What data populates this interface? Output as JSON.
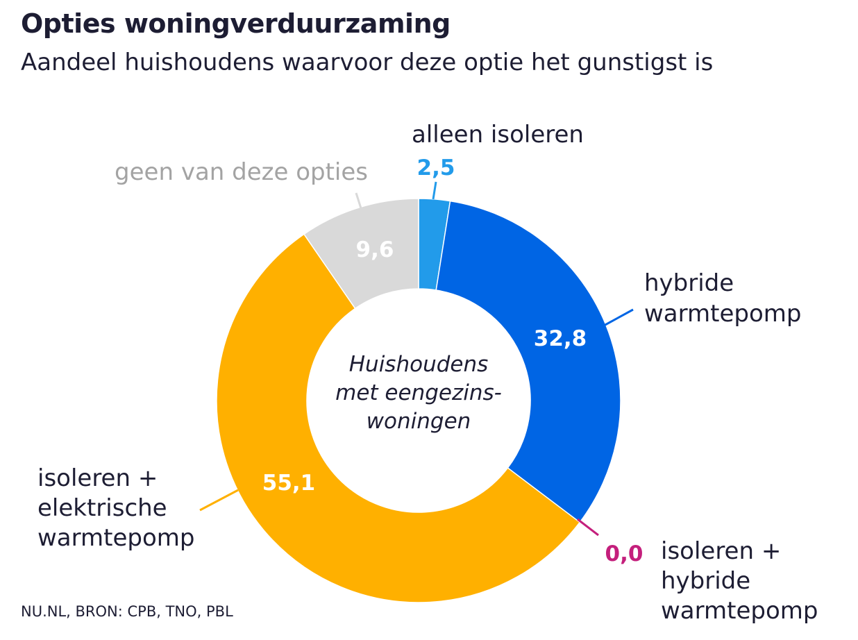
{
  "header": {
    "title": "Opties woningverduurzaming",
    "subtitle": "Aandeel huishoudens waarvoor deze optie het gunstigst is"
  },
  "footer": {
    "source": "NU.NL, BRON: CPB, TNO, PBL"
  },
  "chart_data": {
    "type": "pie",
    "variant": "donut",
    "title": "Opties woningverduurzaming",
    "subtitle": "Aandeel huishoudens waarvoor deze optie het gunstigst is",
    "center_label": [
      "Huishoudens",
      "met eengezins-",
      "woningen"
    ],
    "slices": [
      {
        "key": "alleen_isoleren",
        "label": [
          "alleen isoleren"
        ],
        "value": 2.5,
        "value_label": "2,5",
        "color": "#229bea",
        "value_color": "#229bea",
        "label_color": "#1d1d33"
      },
      {
        "key": "hybride_warmtepomp",
        "label": [
          "hybride",
          "warmtepomp"
        ],
        "value": 32.8,
        "value_label": "32,8",
        "color": "#0065e4",
        "value_color": "#ffffff",
        "label_color": "#1d1d33"
      },
      {
        "key": "isoleren_hybride",
        "label": [
          "isoleren +",
          "hybride",
          "warmtepomp"
        ],
        "value": 0.0,
        "value_label": "0,0",
        "color": "#c41f7c",
        "value_color": "#c41f7c",
        "label_color": "#1d1d33"
      },
      {
        "key": "isoleren_elektrisch",
        "label": [
          "isoleren +",
          "elektrische",
          "warmtepomp"
        ],
        "value": 55.1,
        "value_label": "55,1",
        "color": "#ffb000",
        "value_color": "#ffffff",
        "label_color": "#1d1d33"
      },
      {
        "key": "geen",
        "label": [
          "geen van deze opties"
        ],
        "value": 9.6,
        "value_label": "9,6",
        "color": "#d9d9d9",
        "value_color": "#ffffff",
        "label_color": "#a3a3a3"
      }
    ],
    "center_text_color": "#1d1d33"
  }
}
